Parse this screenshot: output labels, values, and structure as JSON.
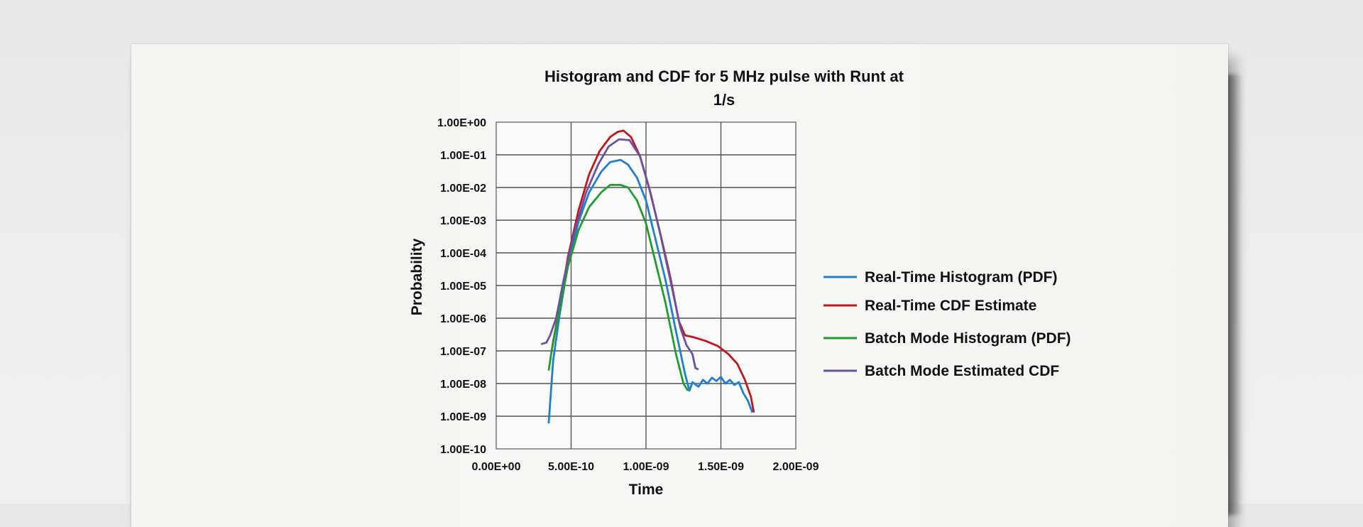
{
  "chart_data": {
    "type": "line",
    "title": "Histogram and CDF for 5 MHz pulse with Runt at",
    "title_line2": "1/s",
    "xlabel": "Time",
    "ylabel": "Probability",
    "xlim": [
      0,
      2e-09
    ],
    "ylim_log10": [
      -10,
      0
    ],
    "x_tick_labels": [
      "0.00E+00",
      "5.00E-10",
      "1.00E-09",
      "1.50E-09",
      "2.00E-09"
    ],
    "y_tick_labels": [
      "1.00E+00",
      "1.00E-01",
      "1.00E-02",
      "1.00E-03",
      "1.00E-04",
      "1.00E-05",
      "1.00E-06",
      "1.00E-07",
      "1.00E-08",
      "1.00E-09",
      "1.00E-10"
    ],
    "grid": true,
    "legend_position": "right",
    "series": [
      {
        "name": "Real-Time Histogram (PDF)",
        "color": "#1f7fd0",
        "x": [
          3.5e-10,
          3.8e-10,
          4.2e-10,
          4.8e-10,
          5.5e-10,
          6.2e-10,
          7e-10,
          7.6e-10,
          8.3e-10,
          8.8e-10,
          9.4e-10,
          1e-09,
          1.06e-09,
          1.13e-09,
          1.2e-09,
          1.26e-09,
          1.29e-09,
          1.31e-09,
          1.35e-09,
          1.38e-09,
          1.41e-09,
          1.44e-09,
          1.47e-09,
          1.5e-09,
          1.53e-09,
          1.56e-09,
          1.59e-09,
          1.62e-09,
          1.65e-09,
          1.68e-09,
          1.71e-09
        ],
        "y": [
          6e-10,
          5e-08,
          1e-06,
          5e-05,
          0.0009,
          0.007,
          0.03,
          0.06,
          0.07,
          0.05,
          0.02,
          0.004,
          0.0003,
          1.5e-05,
          4e-07,
          2e-08,
          6e-09,
          1.1e-08,
          8e-09,
          1.3e-08,
          1e-08,
          1.5e-08,
          1.2e-08,
          1.6e-08,
          1e-08,
          1.3e-08,
          9e-09,
          1.1e-08,
          5e-09,
          3e-09,
          1.3e-09
        ]
      },
      {
        "name": "Real-Time CDF Estimate",
        "color": "#c0161c",
        "x": [
          3.7e-10,
          4.2e-10,
          4.8e-10,
          5.5e-10,
          6.2e-10,
          6.9e-10,
          7.6e-10,
          8.1e-10,
          8.5e-10,
          9e-10,
          9.6e-10,
          1.02e-09,
          1.09e-09,
          1.16e-09,
          1.22e-09,
          1.26e-09,
          1.32e-09,
          1.4e-09,
          1.48e-09,
          1.55e-09,
          1.61e-09,
          1.66e-09,
          1.7e-09,
          1.72e-09
        ],
        "y": [
          1e-07,
          2e-06,
          8e-05,
          0.002,
          0.025,
          0.13,
          0.35,
          0.5,
          0.55,
          0.35,
          0.09,
          0.01,
          0.0005,
          2e-05,
          8e-07,
          3e-07,
          2.6e-07,
          2e-07,
          1.4e-07,
          8e-08,
          4e-08,
          1.3e-08,
          4e-09,
          1.3e-09
        ]
      },
      {
        "name": "Batch Mode Histogram (PDF)",
        "color": "#1f9e2d",
        "x": [
          3.5e-10,
          3.8e-10,
          4.2e-10,
          4.8e-10,
          5.5e-10,
          6.2e-10,
          7e-10,
          7.6e-10,
          8.3e-10,
          8.8e-10,
          9.4e-10,
          1e-09,
          1.06e-09,
          1.13e-09,
          1.2e-09,
          1.25e-09,
          1.28e-09
        ],
        "y": [
          2.5e-08,
          2e-07,
          1.5e-06,
          4e-05,
          0.0005,
          0.0025,
          0.007,
          0.012,
          0.012,
          0.01,
          0.004,
          0.0008,
          6e-05,
          3e-06,
          8e-08,
          1e-08,
          6e-09
        ]
      },
      {
        "name": "Batch Mode Estimated CDF",
        "color": "#6a52a3",
        "x": [
          3e-10,
          3.35e-10,
          3.6e-10,
          4e-10,
          4.5e-10,
          5.2e-10,
          6e-10,
          6.8e-10,
          7.5e-10,
          8.2e-10,
          8.9e-10,
          9.6e-10,
          1.03e-09,
          1.1e-09,
          1.17e-09,
          1.23e-09,
          1.27e-09,
          1.31e-09,
          1.33e-09,
          1.35e-09
        ],
        "y": [
          1.6e-07,
          1.8e-07,
          3e-07,
          1e-06,
          1.5e-05,
          0.0004,
          0.007,
          0.05,
          0.18,
          0.3,
          0.28,
          0.09,
          0.007,
          0.0003,
          1e-05,
          5e-07,
          1.5e-07,
          8e-08,
          3e-08,
          2.7e-08
        ]
      }
    ]
  }
}
